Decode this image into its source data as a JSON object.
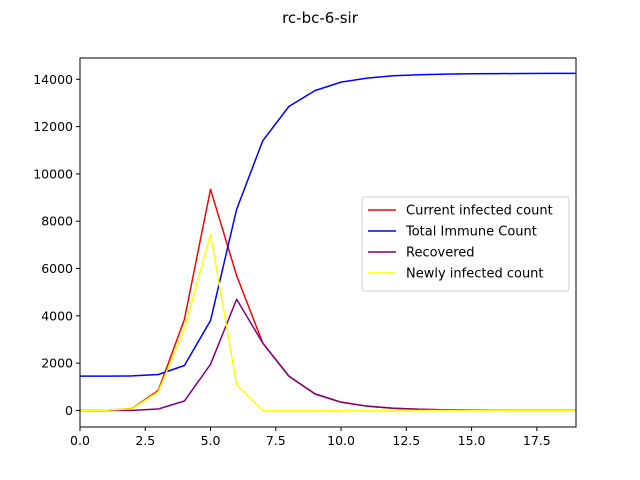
{
  "chart_data": {
    "type": "line",
    "title": "rc-bc-6-sir",
    "xlabel": "",
    "ylabel": "",
    "xlim": [
      0,
      19
    ],
    "ylim": [
      -700,
      14900
    ],
    "x_ticks": [
      0.0,
      2.5,
      5.0,
      7.5,
      10.0,
      12.5,
      15.0,
      17.5
    ],
    "x_tick_labels": [
      "0.0",
      "2.5",
      "5.0",
      "7.5",
      "10.0",
      "12.5",
      "15.0",
      "17.5"
    ],
    "y_ticks": [
      0,
      2000,
      4000,
      6000,
      8000,
      10000,
      12000,
      14000
    ],
    "y_tick_labels": [
      "0",
      "2000",
      "4000",
      "6000",
      "8000",
      "10000",
      "12000",
      "14000"
    ],
    "grid": false,
    "legend_position": "center-right",
    "x": [
      0,
      1,
      2,
      3,
      4,
      5,
      6,
      7,
      8,
      9,
      10,
      11,
      12,
      13,
      14,
      15,
      16,
      17,
      18,
      19
    ],
    "series": [
      {
        "name": "Current infected count",
        "color": "#ff0000",
        "values": [
          0,
          10,
          80,
          850,
          3850,
          9350,
          5700,
          2850,
          1450,
          700,
          350,
          180,
          90,
          50,
          25,
          12,
          6,
          3,
          2,
          1
        ]
      },
      {
        "name": "Total Immune Count",
        "color": "#0000ff",
        "values": [
          1450,
          1450,
          1460,
          1520,
          1900,
          3800,
          8500,
          11400,
          12850,
          13520,
          13880,
          14050,
          14150,
          14190,
          14220,
          14235,
          14240,
          14245,
          14248,
          14250
        ]
      },
      {
        "name": "Recovered",
        "color": "#800080",
        "values": [
          0,
          0,
          5,
          60,
          400,
          1950,
          4700,
          2850,
          1450,
          700,
          350,
          180,
          90,
          50,
          25,
          12,
          6,
          3,
          2,
          1
        ]
      },
      {
        "name": "Newly infected count",
        "color": "#ffff00",
        "values": [
          0,
          10,
          70,
          790,
          3450,
          7450,
          1100,
          5,
          0,
          0,
          0,
          0,
          0,
          0,
          0,
          0,
          0,
          0,
          0,
          0
        ]
      }
    ]
  }
}
